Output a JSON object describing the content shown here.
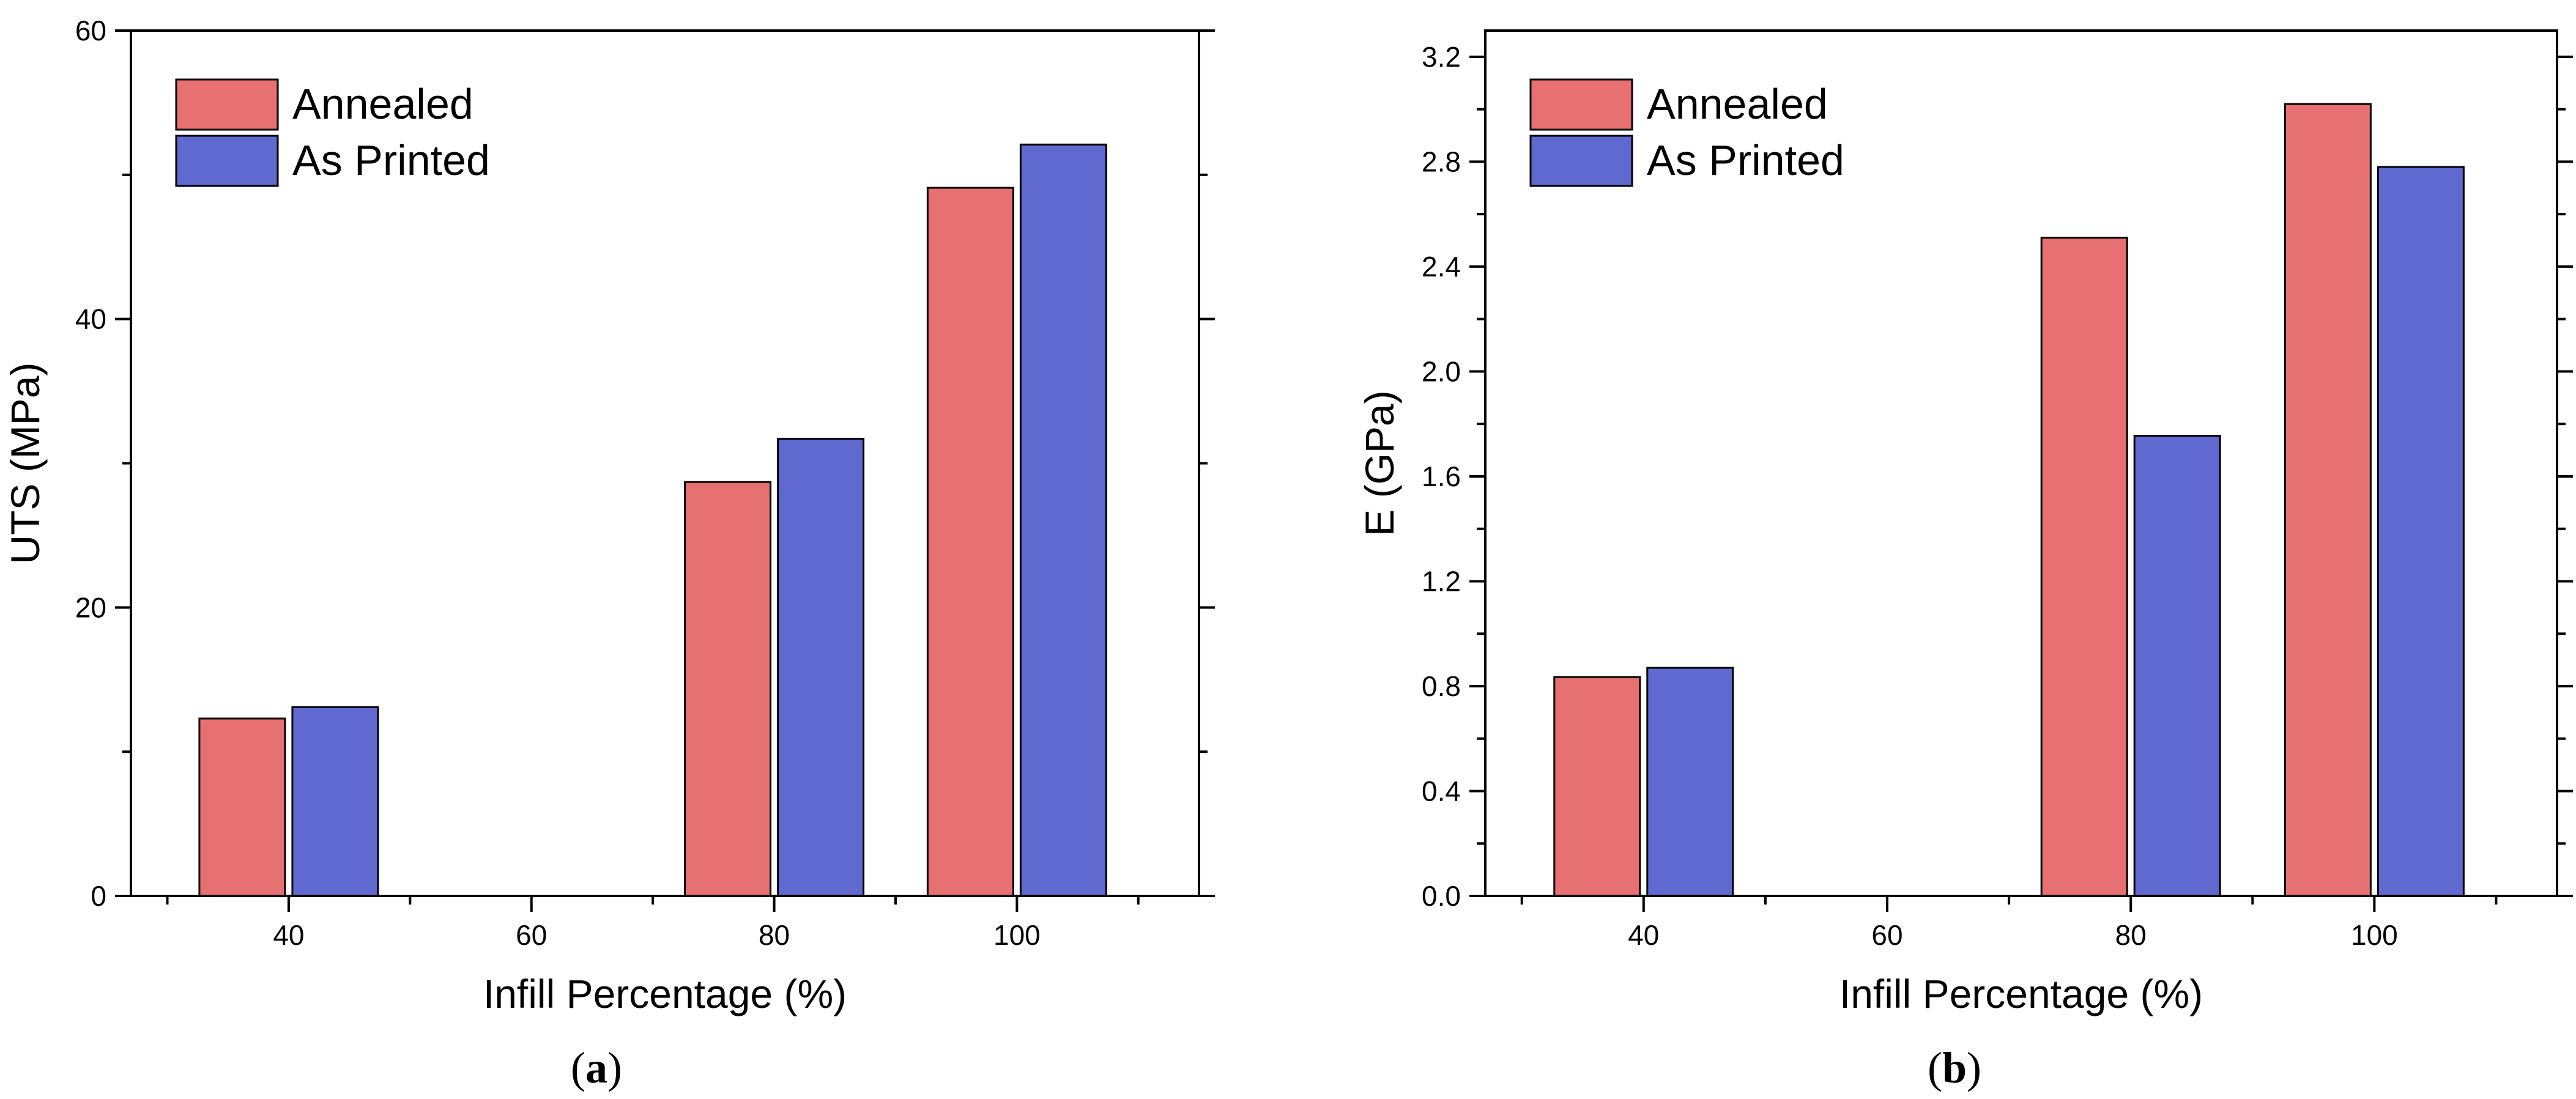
{
  "chart_data": [
    {
      "panel_label": "a",
      "type": "bar",
      "xlabel": "Infill Percentage (%)",
      "ylabel": "UTS (MPa)",
      "x_ticks": [
        40,
        60,
        80,
        100
      ],
      "xlim": [
        27,
        115
      ],
      "ylim": [
        0,
        60
      ],
      "y_ticks": [
        0,
        20,
        40,
        60
      ],
      "y_minor_step": 10,
      "legend_position": "top-left",
      "categories": [
        40,
        80,
        100
      ],
      "series": [
        {
          "name": "Annealed",
          "color": "#e77070",
          "values": [
            12.3,
            28.7,
            49.1
          ]
        },
        {
          "name": "As Printed",
          "color": "#6069cf",
          "values": [
            13.1,
            31.7,
            52.1
          ]
        }
      ]
    },
    {
      "panel_label": "b",
      "type": "bar",
      "xlabel": "Infill Percentage (%)",
      "ylabel": "E (GPa)",
      "x_ticks": [
        40,
        60,
        80,
        100
      ],
      "xlim": [
        27,
        115
      ],
      "ylim": [
        0,
        3.3
      ],
      "y_ticks": [
        0.0,
        0.4,
        0.8,
        1.2,
        1.6,
        2.0,
        2.4,
        2.8,
        3.2
      ],
      "y_tick_labels": [
        "0.0",
        "0.4",
        "0.8",
        "1.2",
        "1.6",
        "2.0",
        "2.4",
        "2.8",
        "3.2"
      ],
      "y_minor_step": 0.2,
      "legend_position": "top-left",
      "categories": [
        40,
        80,
        100
      ],
      "series": [
        {
          "name": "Annealed",
          "color": "#e77070",
          "values": [
            0.835,
            2.51,
            3.02
          ]
        },
        {
          "name": "As Printed",
          "color": "#6069cf",
          "values": [
            0.87,
            1.755,
            2.78
          ]
        }
      ]
    }
  ]
}
